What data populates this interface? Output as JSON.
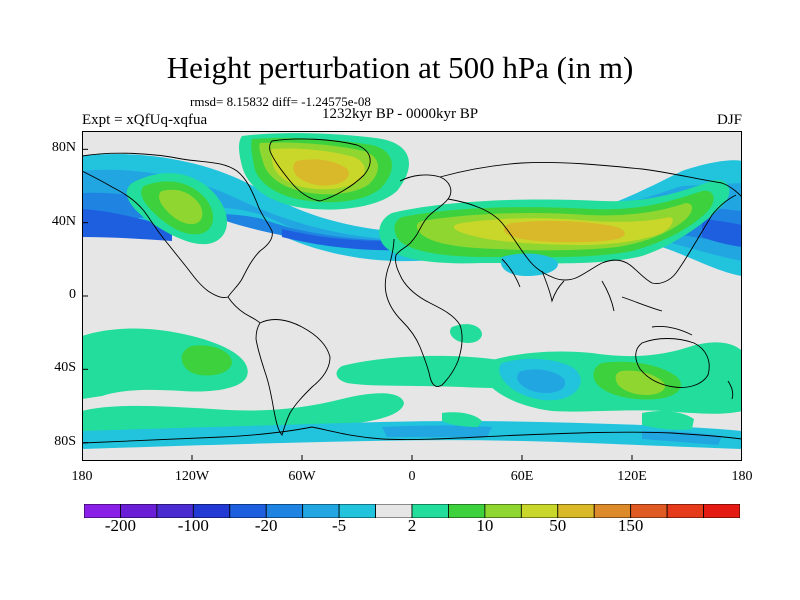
{
  "title": "Height perturbation at 500 hPa (in m)",
  "stats": "rmsd= 8.15832 diff= -1.24575e-08",
  "period": "1232kyr BP - 0000kyr BP",
  "experiment": "Expt = xQfUq-xqfua",
  "season": "DJF",
  "lat_labels": [
    {
      "id": "lat-80n",
      "text": "80N",
      "lat": 80
    },
    {
      "id": "lat-40n",
      "text": "40N",
      "lat": 40
    },
    {
      "id": "lat-0",
      "text": "0",
      "lat": 0
    },
    {
      "id": "lat-40s",
      "text": "40S",
      "lat": -40
    },
    {
      "id": "lat-80s",
      "text": "80S",
      "lat": -80
    }
  ],
  "lon_labels": [
    {
      "id": "lon-180",
      "text": "180",
      "lon": -180
    },
    {
      "id": "lon-120w",
      "text": "120W",
      "lon": -120
    },
    {
      "id": "lon-60w",
      "text": "60W",
      "lon": -60
    },
    {
      "id": "lon-0",
      "text": "0",
      "lon": 0
    },
    {
      "id": "lon-60e",
      "text": "60E",
      "lon": 60
    },
    {
      "id": "lon-120e",
      "text": "120E",
      "lon": 120
    },
    {
      "id": "lon-180e",
      "text": "180",
      "lon": 180
    }
  ],
  "colorbar": {
    "colors": [
      "#8a20e8",
      "#6a1fd6",
      "#4a2cd0",
      "#2239d3",
      "#1e5fe0",
      "#1f83e2",
      "#22a6e2",
      "#22c3dd",
      "#e6e6e6",
      "#22dd9b",
      "#3ed13e",
      "#8fd630",
      "#c9d72a",
      "#d9b82a",
      "#dd8a2a",
      "#e05a23",
      "#e63b1b",
      "#e51a12"
    ],
    "tick_labels": [
      {
        "id": "cb-m200",
        "text": "-200",
        "boundary": 1
      },
      {
        "id": "cb-m100",
        "text": "-100",
        "boundary": 3
      },
      {
        "id": "cb-m20",
        "text": "-20",
        "boundary": 5
      },
      {
        "id": "cb-m5",
        "text": "-5",
        "boundary": 7
      },
      {
        "id": "cb-2",
        "text": "2",
        "boundary": 9
      },
      {
        "id": "cb-10",
        "text": "10",
        "boundary": 11
      },
      {
        "id": "cb-50",
        "text": "50",
        "boundary": 13
      },
      {
        "id": "cb-150",
        "text": "150",
        "boundary": 15
      }
    ]
  }
}
